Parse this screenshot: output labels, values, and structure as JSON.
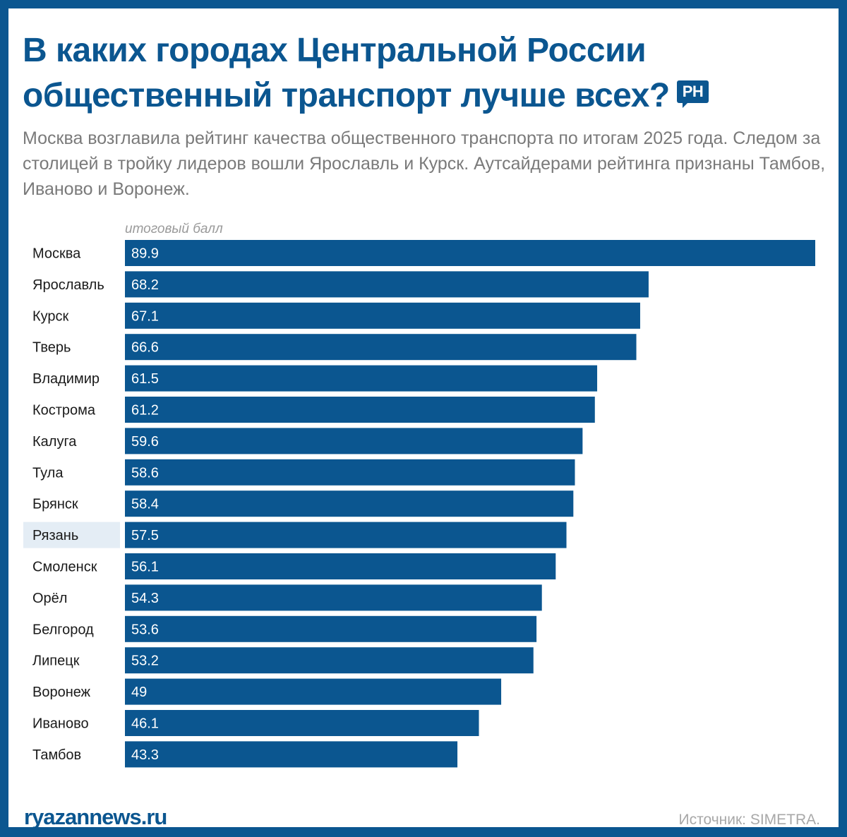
{
  "title": "В каких городах Центральной России общественный транспорт лучше всех?",
  "logo_badge": "РН",
  "subtitle": "Москва возглавила рейтинг качества общественного транспорта по итогам 2025 года. Следом за столицей в тройку лидеров вошли Ярославль и Курск. Аутсайдерами рейтинга признаны Тамбов, Иваново и Воронеж.",
  "footer": {
    "site": "ryazannews.ru",
    "source": "Источник: SIMETRA."
  },
  "colors": {
    "bar": "#0b5690",
    "highlight": "#e4edf5",
    "label": "#1a1a1a"
  },
  "chart_data": {
    "type": "bar",
    "orientation": "horizontal",
    "value_label": "итоговый балл",
    "categories": [
      "Москва",
      "Ярославль",
      "Курск",
      "Тверь",
      "Владимир",
      "Кострома",
      "Калуга",
      "Тула",
      "Брянск",
      "Рязань",
      "Смоленск",
      "Орёл",
      "Белгород",
      "Липецк",
      "Воронеж",
      "Иваново",
      "Тамбов"
    ],
    "values": [
      89.9,
      68.2,
      67.1,
      66.6,
      61.5,
      61.2,
      59.6,
      58.6,
      58.4,
      57.5,
      56.1,
      54.3,
      53.6,
      53.2,
      49,
      46.1,
      43.3
    ],
    "value_labels": [
      "89.9",
      "68.2",
      "67.1",
      "66.6",
      "61.5",
      "61.2",
      "59.6",
      "58.6",
      "58.4",
      "57.5",
      "56.1",
      "54.3",
      "53.6",
      "53.2",
      "49",
      "46.1",
      "43.3"
    ],
    "highlighted": "Рязань",
    "xlim": [
      0,
      89.9
    ]
  }
}
